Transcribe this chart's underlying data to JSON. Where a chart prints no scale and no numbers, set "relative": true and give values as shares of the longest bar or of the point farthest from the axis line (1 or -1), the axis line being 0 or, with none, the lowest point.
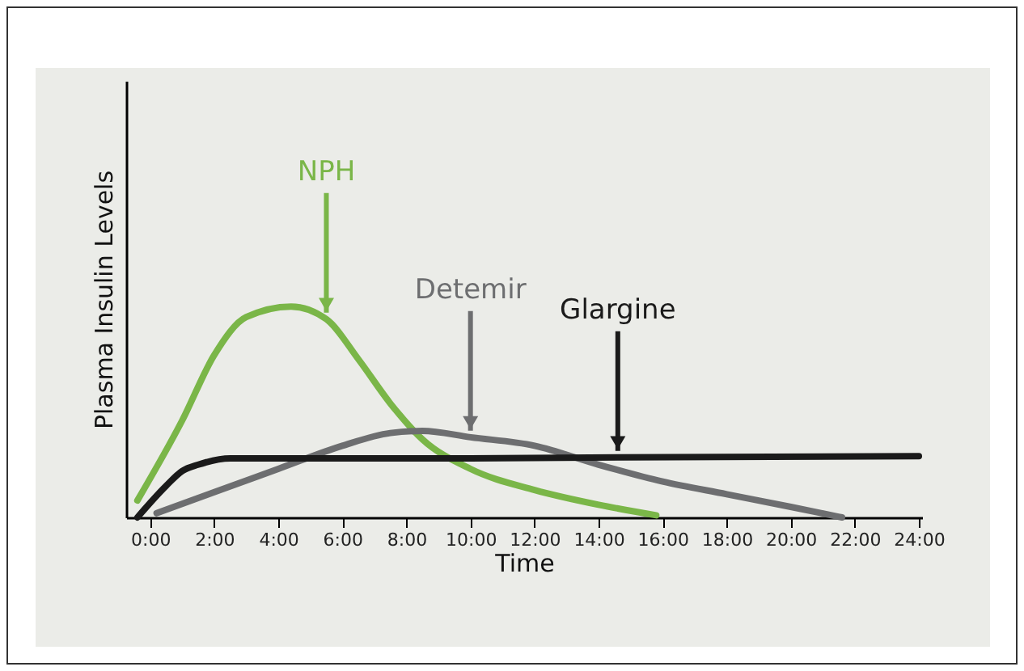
{
  "chart_data": {
    "type": "line",
    "xlabel": "Time",
    "ylabel": "Plasma Insulin Levels",
    "relative": true,
    "grid": false,
    "legend": false,
    "marker": "none",
    "line_style": "solid",
    "xlim": [
      -0.75,
      24.1
    ],
    "xticks": [
      {
        "value": 0,
        "label": "0:00"
      },
      {
        "value": 2,
        "label": "2:00"
      },
      {
        "value": 4,
        "label": "4:00"
      },
      {
        "value": 6,
        "label": "6:00"
      },
      {
        "value": 8,
        "label": "8:00"
      },
      {
        "value": 10,
        "label": "10:00"
      },
      {
        "value": 12,
        "label": "12:00"
      },
      {
        "value": 14,
        "label": "14:00"
      },
      {
        "value": 16,
        "label": "16:00"
      },
      {
        "value": 18,
        "label": "18:00"
      },
      {
        "value": 20,
        "label": "20:00"
      },
      {
        "value": 22,
        "label": "22:00"
      },
      {
        "value": 24,
        "label": "24:00"
      }
    ],
    "series": [
      {
        "color": "#7ab648",
        "x": [
          -0.4,
          1,
          2,
          3,
          4.4,
          5.5,
          6.5,
          7.5,
          8.5,
          10,
          12,
          14,
          15.8
        ],
        "values": [
          0.08,
          0.46,
          0.77,
          0.95,
          1,
          0.94,
          0.75,
          0.54,
          0.37,
          0.23,
          0.13,
          0.06,
          0.01
        ]
      },
      {
        "color": "#6d6e70",
        "x": [
          0.2,
          2,
          4,
          6,
          7.5,
          8.5,
          10,
          12,
          14,
          16,
          18,
          20,
          21.6
        ],
        "values": [
          0.02,
          0.12,
          0.23,
          0.34,
          0.4,
          0.41,
          0.38,
          0.34,
          0.25,
          0.17,
          0.11,
          0.05,
          0
        ]
      },
      {
        "color": "#1a1a1a",
        "x": [
          -0.4,
          0.5,
          1,
          1.5,
          2.5,
          10,
          14.6,
          24
        ],
        "values": [
          0,
          0.15,
          0.22,
          0.25,
          0.28,
          0.28,
          0.285,
          0.29
        ]
      }
    ],
    "annotations": [
      {
        "text": "NPH",
        "x": 5.5,
        "y": 0.94
      },
      {
        "text": "Detemir",
        "x": 10,
        "y": 0.38
      },
      {
        "text": "Glargine",
        "x": 14.6,
        "y": 0.285
      }
    ]
  }
}
